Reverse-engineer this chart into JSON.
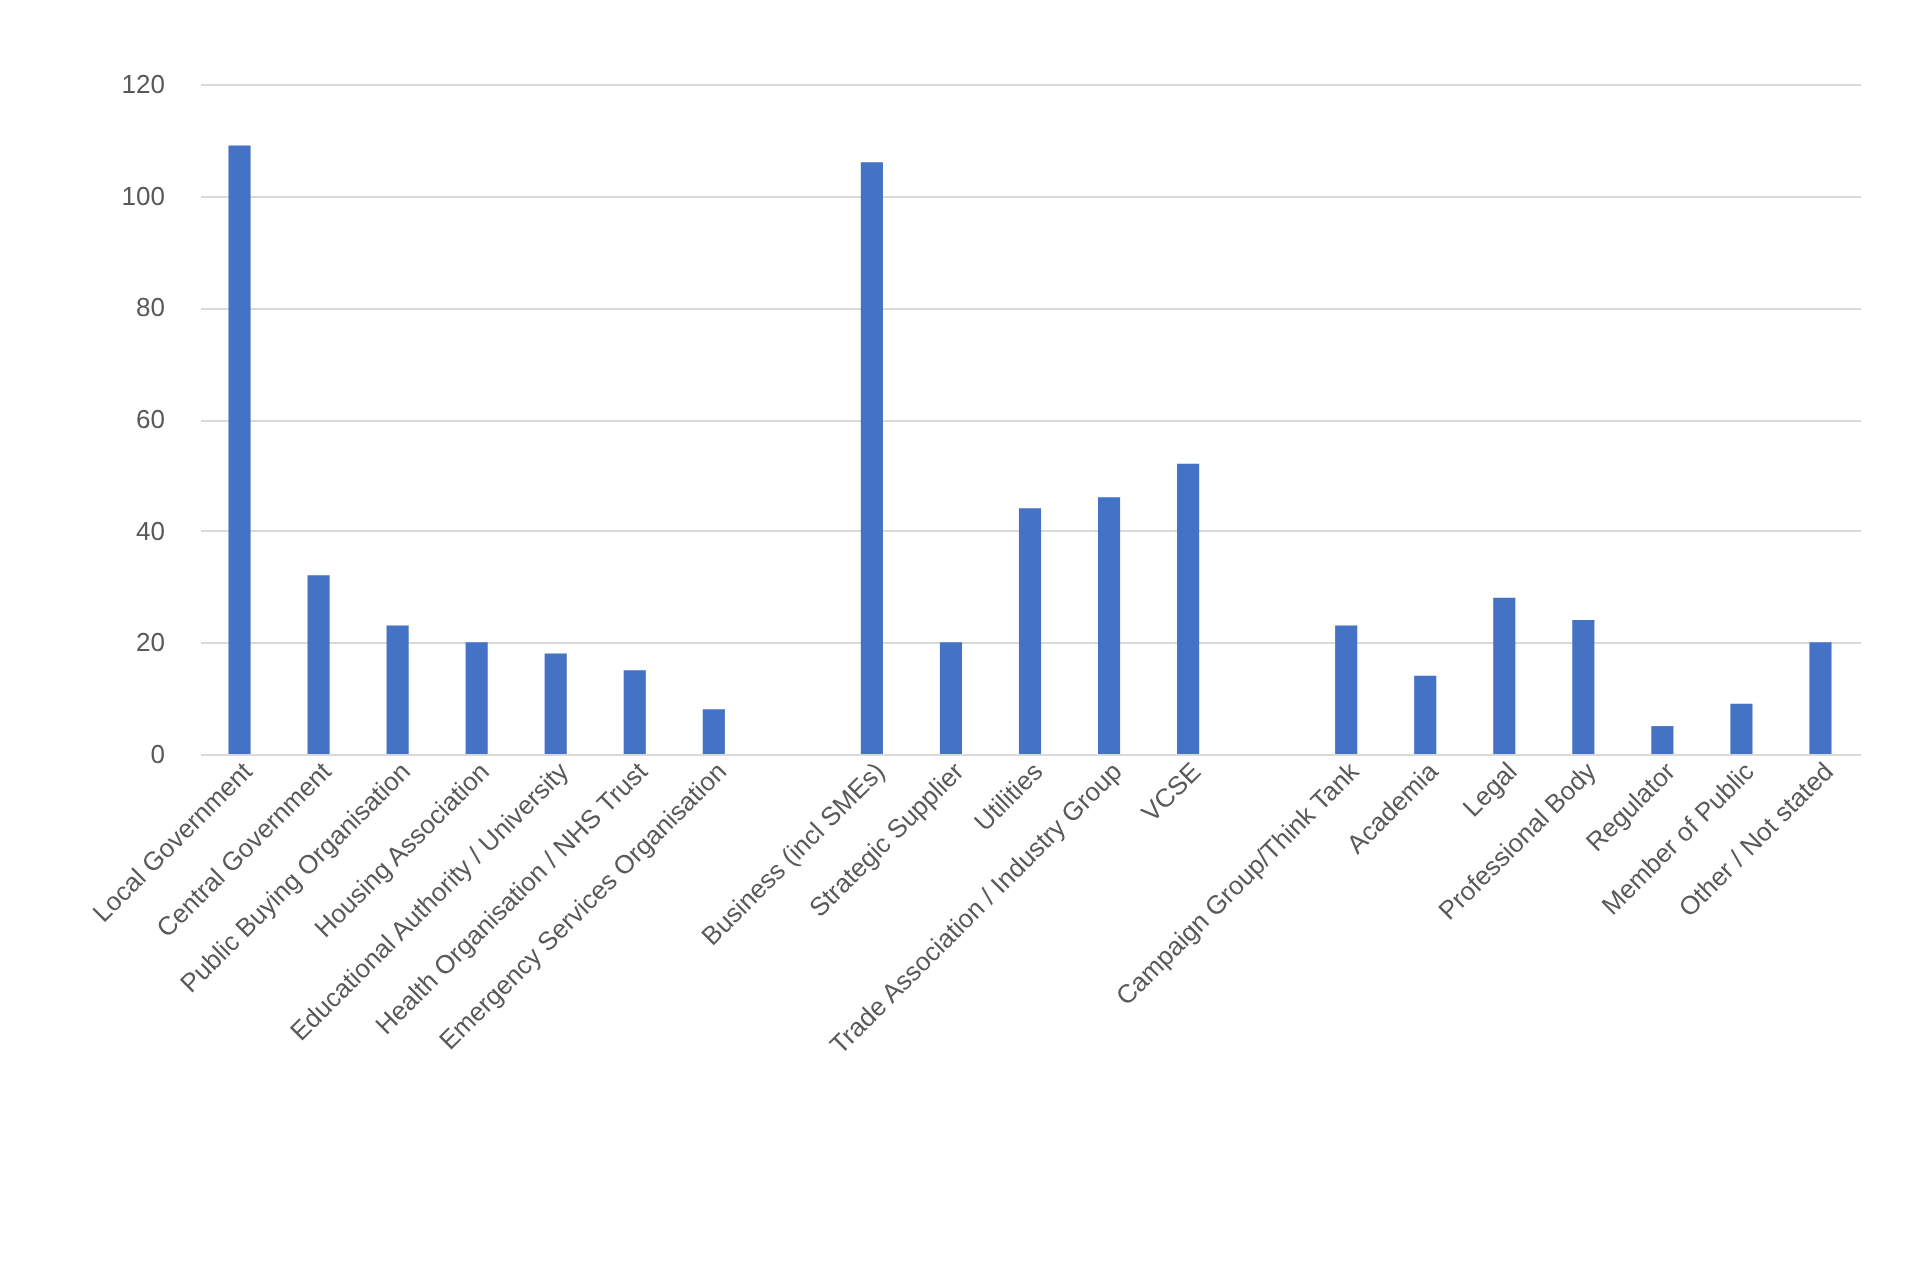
{
  "chart_data": {
    "type": "bar",
    "categories": [
      "Local Government",
      "Central Government",
      "Public Buying Organisation",
      "Housing Association",
      "Educational Authority / University",
      "Health Organisation / NHS Trust",
      "Emergency Services Organisation",
      null,
      "Business (incl SMEs)",
      "Strategic Supplier",
      "Utilities",
      "Trade Association / Industry Group",
      "VCSE",
      null,
      "Campaign Group/Think Tank",
      "Academia",
      "Legal",
      "Professional Body",
      "Regulator",
      "Member of Public",
      "Other / Not stated"
    ],
    "values": [
      109,
      32,
      23,
      20,
      18,
      15,
      8,
      null,
      106,
      20,
      44,
      46,
      52,
      null,
      23,
      14,
      28,
      24,
      5,
      9,
      20
    ],
    "color": "#4472c4",
    "ylim": [
      0,
      120
    ],
    "yticks": [
      0,
      20,
      40,
      60,
      80,
      100,
      120
    ],
    "grid": "y"
  }
}
